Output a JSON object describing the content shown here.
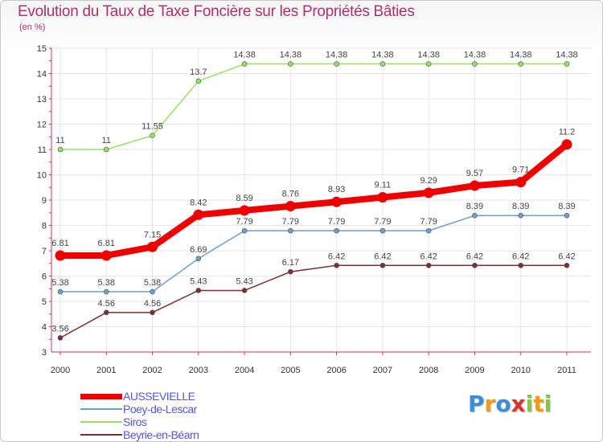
{
  "title": "Evolution du Taux de Taxe Foncière sur les Propriétés Bâties",
  "unit_label": "(en %)",
  "brand": {
    "text": "Proxiti",
    "letters": [
      {
        "ch": "P",
        "color": "#3a8fd6"
      },
      {
        "ch": "r",
        "color": "#f39c12"
      },
      {
        "ch": "o",
        "color": "#3a8fd6"
      },
      {
        "ch": "x",
        "color": "#e03030"
      },
      {
        "ch": "i",
        "color": "#8bc34a"
      },
      {
        "ch": "t",
        "color": "#f39c12"
      },
      {
        "ch": "i",
        "color": "#8bc34a"
      }
    ]
  },
  "chart_data": {
    "type": "line",
    "title": "Evolution du Taux de Taxe Foncière sur les Propriétés Bâties",
    "ylabel": "(en %)",
    "xlabel": "",
    "ylim": [
      3,
      15
    ],
    "yticks": [
      "3",
      "4",
      "5",
      "6",
      "7",
      "8",
      "9",
      "10",
      "11",
      "12",
      "13",
      "14",
      "15"
    ],
    "categories": [
      "2000",
      "2001",
      "2002",
      "2003",
      "2004",
      "2005",
      "2006",
      "2007",
      "2008",
      "2009",
      "2010",
      "2011"
    ],
    "legend_position": "bottom-left",
    "series": [
      {
        "name": "AUSSEVIELLE",
        "color": "#ee0000",
        "values": [
          6.81,
          6.81,
          7.15,
          8.42,
          8.59,
          8.76,
          8.93,
          9.11,
          9.29,
          9.57,
          9.71,
          11.2
        ],
        "labels": [
          "6.81",
          "6.81",
          "7.15",
          "8.42",
          "8.59",
          "8.76",
          "8.93",
          "9.11",
          "9.29",
          "9.57",
          "9.71",
          "11.2"
        ]
      },
      {
        "name": "Poey-de-Lescar",
        "color": "#6f9fc8",
        "values": [
          5.38,
          5.38,
          5.38,
          6.69,
          7.79,
          7.79,
          7.79,
          7.79,
          7.79,
          8.39,
          8.39,
          8.39
        ],
        "labels": [
          "5.38",
          "5.38",
          "5.38",
          "6.69",
          "7.79",
          "7.79",
          "7.79",
          "7.79",
          "7.79",
          "8.39",
          "8.39",
          "8.39"
        ]
      },
      {
        "name": "Siros",
        "color": "#99dd66",
        "values": [
          11,
          11,
          11.55,
          13.7,
          14.38,
          14.38,
          14.38,
          14.38,
          14.38,
          14.38,
          14.38,
          14.38
        ],
        "labels": [
          "11",
          "11",
          "11.55",
          "13.7",
          "14.38",
          "14.38",
          "14.38",
          "14.38",
          "14.38",
          "14.38",
          "14.38",
          "14.38"
        ]
      },
      {
        "name": "Beyrie-en-Béarn",
        "color": "#7a3030",
        "values": [
          3.56,
          4.56,
          4.56,
          5.43,
          5.43,
          6.17,
          6.42,
          6.42,
          6.42,
          6.42,
          6.42,
          6.42
        ],
        "labels": [
          "3.56",
          "4.56",
          "4.56",
          "5.43",
          "5.43",
          "6.17",
          "6.42",
          "6.42",
          "6.42",
          "6.42",
          "6.42",
          "6.42"
        ]
      }
    ]
  }
}
